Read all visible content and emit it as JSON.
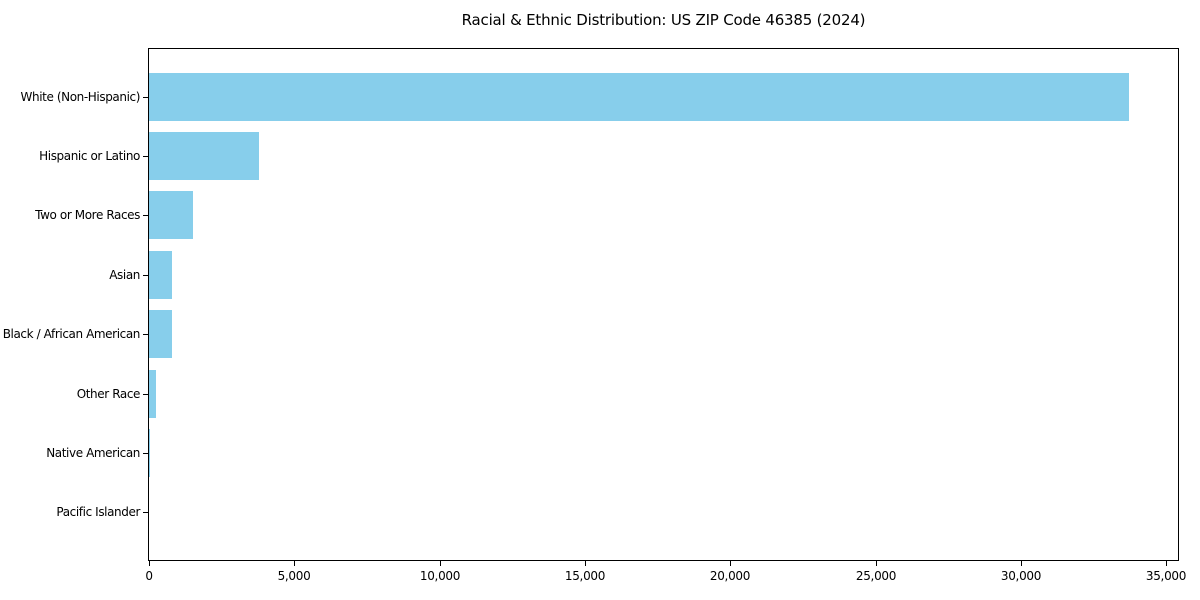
{
  "chart_data": {
    "type": "bar",
    "orientation": "horizontal",
    "title": "Racial & Ethnic Distribution: US ZIP Code 46385 (2024)",
    "categories": [
      "White (Non-Hispanic)",
      "Hispanic or Latino",
      "Two or More Races",
      "Asian",
      "Black / African American",
      "Other Race",
      "Native American",
      "Pacific Islander"
    ],
    "values": [
      33700,
      3800,
      1510,
      800,
      780,
      250,
      20,
      10
    ],
    "xlabel": "",
    "ylabel": "",
    "xlim": [
      0,
      35400
    ],
    "x_ticks": [
      0,
      5000,
      10000,
      15000,
      20000,
      25000,
      30000,
      35000
    ],
    "x_tick_labels": [
      "0",
      "5,000",
      "10,000",
      "15,000",
      "20,000",
      "25,000",
      "30,000",
      "35,000"
    ],
    "bar_color": "#87CEEB",
    "grid": false,
    "legend_position": "none",
    "colors": {
      "background": "#ffffff",
      "text": "#000000",
      "spine": "#000000"
    }
  }
}
